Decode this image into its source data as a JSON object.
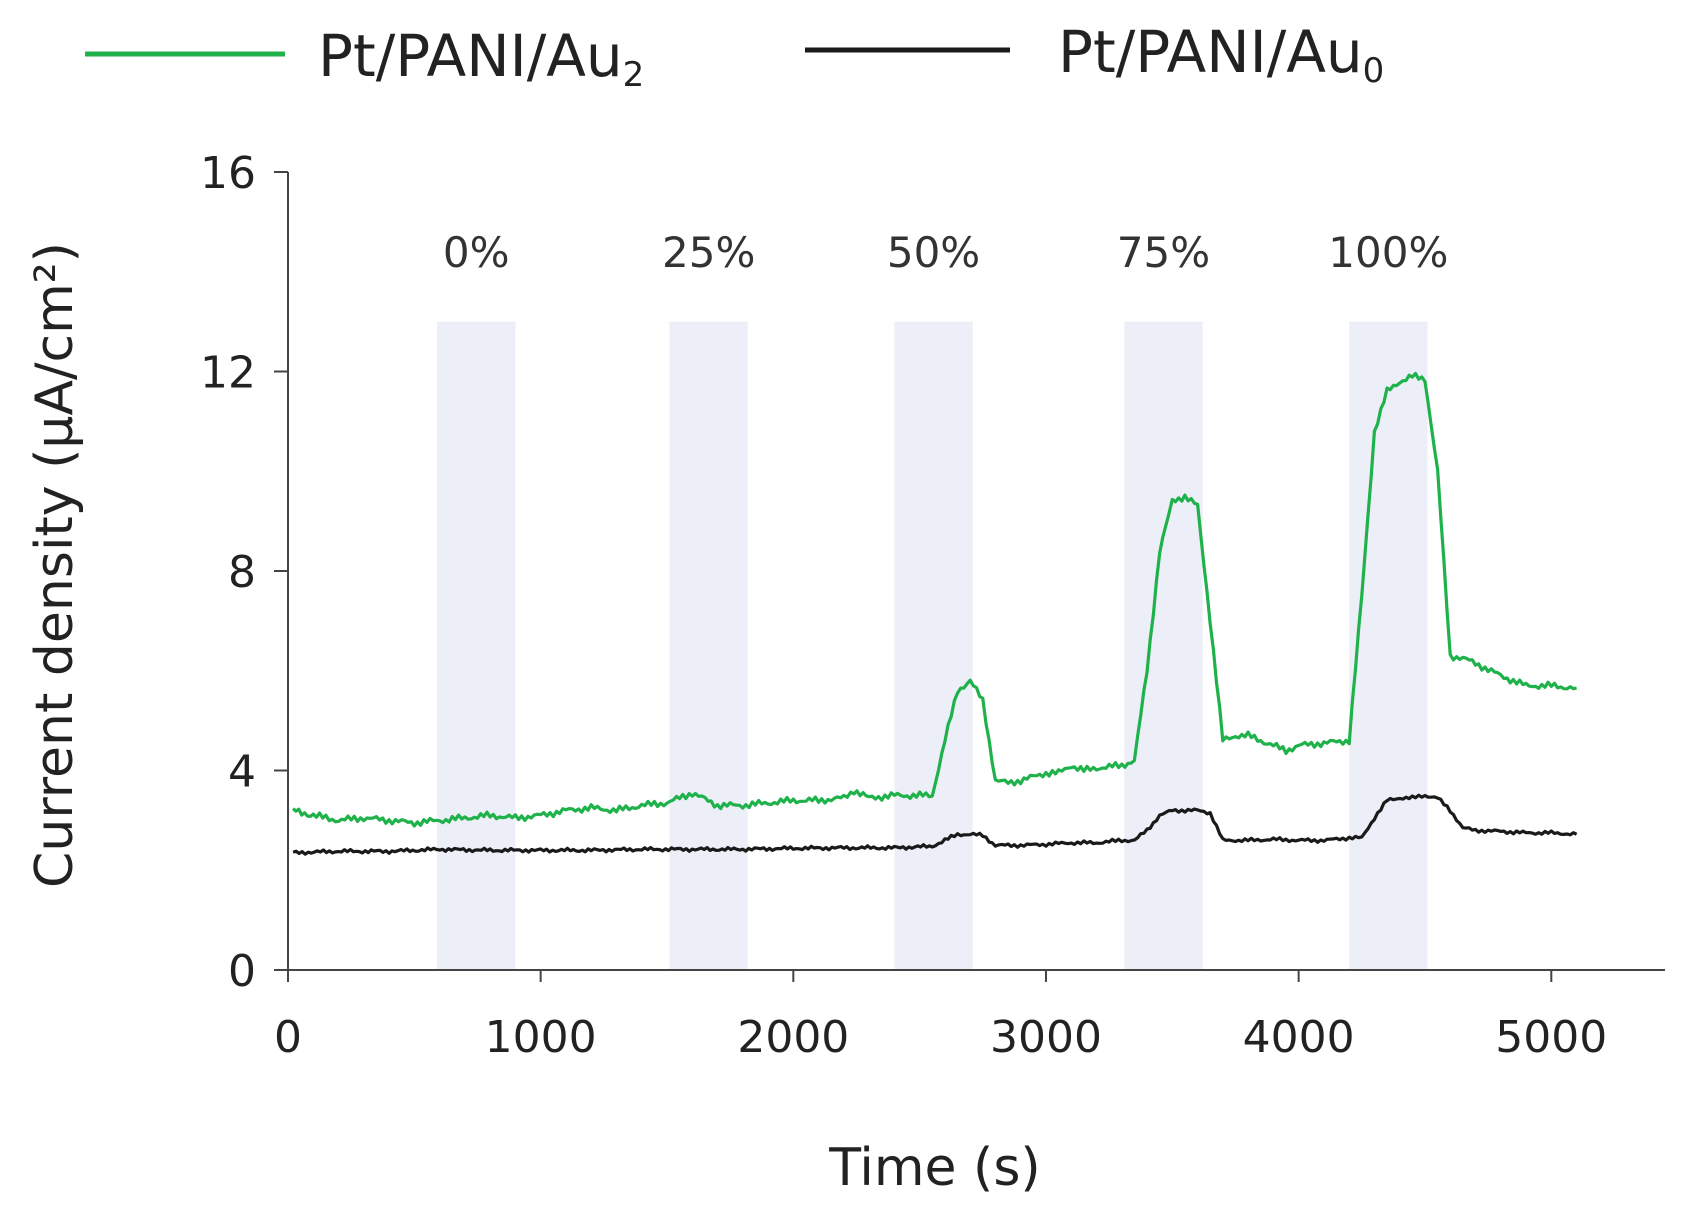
{
  "chart_data": {
    "type": "line",
    "title": "",
    "xlabel": "Time (s)",
    "ylabel": "Current density (μA/cm²)",
    "xlim": [
      0,
      5450
    ],
    "ylim": [
      0,
      16
    ],
    "xticks": [
      0,
      1000,
      2000,
      3000,
      4000,
      5000
    ],
    "yticks": [
      0,
      4,
      8,
      12,
      16
    ],
    "xtick_labels": [
      "0",
      "1000",
      "2000",
      "3000",
      "4000",
      "5000"
    ],
    "ytick_labels": [
      "0",
      "4",
      "8",
      "12",
      "16"
    ],
    "legend_position": "top",
    "grid": false,
    "bands": [
      {
        "label": "0%",
        "start": 590,
        "end": 900
      },
      {
        "label": "25%",
        "start": 1510,
        "end": 1820
      },
      {
        "label": "50%",
        "start": 2400,
        "end": 2710
      },
      {
        "label": "75%",
        "start": 3310,
        "end": 3620
      },
      {
        "label": "100%",
        "start": 4200,
        "end": 4510
      }
    ],
    "band_color": "#eceff8",
    "series": [
      {
        "name": "Pt/PANI/Au",
        "subscript": "2",
        "color": "#1fb24a",
        "x": [
          20,
          100,
          200,
          300,
          400,
          500,
          600,
          700,
          800,
          900,
          1000,
          1100,
          1200,
          1300,
          1400,
          1500,
          1600,
          1700,
          1800,
          1900,
          2000,
          2100,
          2200,
          2240,
          2300,
          2400,
          2500,
          2550,
          2600,
          2650,
          2700,
          2750,
          2800,
          2850,
          2900,
          3000,
          3050,
          3100,
          3150,
          3200,
          3300,
          3350,
          3400,
          3450,
          3500,
          3550,
          3600,
          3650,
          3700,
          3750,
          3800,
          3900,
          3950,
          4000,
          4100,
          4200,
          4250,
          4300,
          4350,
          4400,
          4450,
          4500,
          4550,
          4600,
          4650,
          4700,
          4800,
          4900,
          5000,
          5100
        ],
        "values": [
          3.2,
          3.1,
          3.0,
          3.05,
          3.0,
          2.95,
          3.0,
          3.05,
          3.1,
          3.05,
          3.1,
          3.2,
          3.25,
          3.2,
          3.3,
          3.35,
          3.55,
          3.3,
          3.3,
          3.35,
          3.4,
          3.4,
          3.45,
          3.6,
          3.45,
          3.5,
          3.5,
          3.5,
          4.6,
          5.6,
          5.8,
          5.4,
          3.8,
          3.75,
          3.8,
          3.95,
          3.95,
          4.1,
          4.0,
          4.05,
          4.1,
          4.2,
          6.0,
          8.4,
          9.4,
          9.5,
          9.3,
          7.0,
          4.6,
          4.7,
          4.7,
          4.5,
          4.4,
          4.5,
          4.55,
          4.6,
          7.5,
          10.8,
          11.6,
          11.8,
          11.9,
          11.85,
          10.0,
          6.3,
          6.25,
          6.15,
          5.9,
          5.7,
          5.7,
          5.65
        ]
      },
      {
        "name": "Pt/PANI/Au",
        "subscript": "0",
        "color": "#1a1a1a",
        "x": [
          20,
          200,
          400,
          600,
          800,
          1000,
          1200,
          1400,
          1600,
          1800,
          2000,
          2200,
          2400,
          2550,
          2600,
          2650,
          2700,
          2750,
          2800,
          2900,
          3000,
          3100,
          3200,
          3300,
          3350,
          3400,
          3450,
          3500,
          3550,
          3600,
          3650,
          3700,
          3800,
          3900,
          4000,
          4100,
          4200,
          4250,
          4300,
          4350,
          4400,
          4450,
          4500,
          4550,
          4600,
          4650,
          4700,
          4800,
          4900,
          5000,
          5100
        ],
        "values": [
          2.35,
          2.38,
          2.38,
          2.42,
          2.4,
          2.4,
          2.4,
          2.42,
          2.42,
          2.42,
          2.44,
          2.45,
          2.45,
          2.48,
          2.6,
          2.72,
          2.72,
          2.7,
          2.5,
          2.5,
          2.52,
          2.55,
          2.55,
          2.6,
          2.6,
          2.8,
          3.1,
          3.2,
          3.2,
          3.2,
          3.15,
          2.6,
          2.6,
          2.62,
          2.6,
          2.6,
          2.65,
          2.65,
          3.05,
          3.4,
          3.45,
          3.45,
          3.5,
          3.45,
          3.2,
          2.85,
          2.8,
          2.78,
          2.75,
          2.75,
          2.72
        ]
      }
    ]
  }
}
